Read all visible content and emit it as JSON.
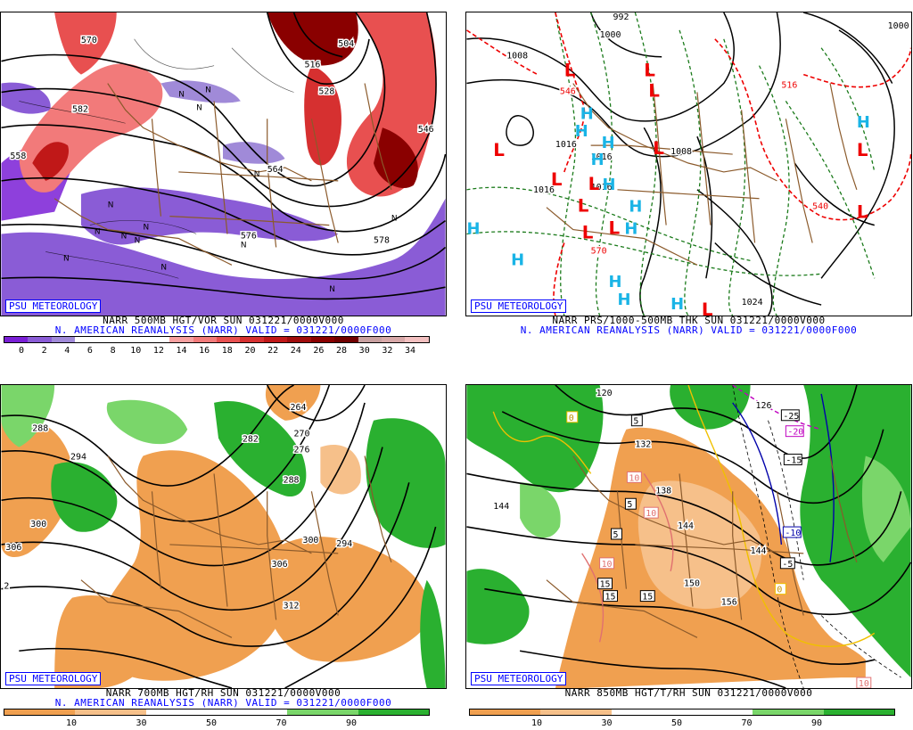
{
  "badge": "PSU METEOROLOGY",
  "panels": {
    "tl": {
      "title": "NARR 500MB HGT/VOR SUN 031221/0000V000",
      "subtitle": "N. AMERICAN REANALYSIS (NARR) VALID = 031221/0000F000",
      "ticks": [
        "0",
        "2",
        "4",
        "6",
        "8",
        "10",
        "12",
        "14",
        "16",
        "18",
        "20",
        "22",
        "24",
        "26",
        "28",
        "30",
        "32",
        "34"
      ],
      "colors": [
        "#7a1fd6",
        "#8a5cd6",
        "#a08ad8",
        "#ffffff",
        "#ffffff",
        "#ffffff",
        "#ffffff",
        "#f7a0a0",
        "#f27a7a",
        "#e85050",
        "#d63030",
        "#c01818",
        "#a00c0c",
        "#8a0000",
        "#700000",
        "#c8a0a0",
        "#d8a8a8",
        "#f3c0c0"
      ],
      "contour_labels": [
        "570",
        "582",
        "576",
        "564",
        "528",
        "516",
        "558",
        "546",
        "504",
        "578"
      ],
      "vort_marks": [
        "N",
        "N",
        "N",
        "N",
        "N",
        "N",
        "N",
        "N",
        "N",
        "N",
        "N",
        "N",
        "N",
        "N"
      ]
    },
    "tr": {
      "title": "NARR PRS/1000-500MB THK SUN 031221/0000V000",
      "subtitle": "N. AMERICAN REANALYSIS (NARR) VALID = 031221/0000F000",
      "contour_labels": [
        "992",
        "1000",
        "1008",
        "1016",
        "1016",
        "1016",
        "1016",
        "1008",
        "1024",
        "1000",
        "546",
        "570",
        "540",
        "516"
      ],
      "lows": [
        "L",
        "L",
        "L",
        "L",
        "L",
        "L",
        "L",
        "L",
        "L",
        "L",
        "L",
        "L",
        "L"
      ],
      "highs": [
        "H",
        "H",
        "H",
        "H",
        "H",
        "H",
        "H",
        "H",
        "H",
        "H",
        "H",
        "H",
        "H"
      ]
    },
    "bl": {
      "title": "NARR 700MB HGT/RH SUN 031221/0000V000",
      "subtitle": "N. AMERICAN REANALYSIS (NARR) VALID = 031221/0000F000",
      "ticks": [
        "10",
        "30",
        "50",
        "70",
        "90"
      ],
      "colors": [
        "#f0a050",
        "#f6c08a",
        "#ffffff",
        "#ffffff",
        "#7ad66a",
        "#2ab030"
      ],
      "contour_labels": [
        "288",
        "294",
        "300",
        "306",
        "264",
        "270",
        "276",
        "282",
        "288",
        "300",
        "294",
        "306",
        "312",
        "2"
      ]
    },
    "br": {
      "title": "NARR 850MB HGT/T/RH SUN 031221/0000V000",
      "subtitle": "",
      "ticks": [
        "10",
        "30",
        "50",
        "70",
        "90"
      ],
      "colors": [
        "#f0a050",
        "#f6c08a",
        "#ffffff",
        "#ffffff",
        "#7ad66a",
        "#2ab030"
      ],
      "contour_labels": [
        "120",
        "126",
        "132",
        "138",
        "144",
        "144",
        "150",
        "156",
        "144"
      ],
      "temp_labels": [
        "-25",
        "-20",
        "-15",
        "-10",
        "-5",
        "0",
        "5",
        "5",
        "5",
        "10",
        "10",
        "10",
        "15",
        "15",
        "15",
        "0",
        "10"
      ]
    }
  }
}
